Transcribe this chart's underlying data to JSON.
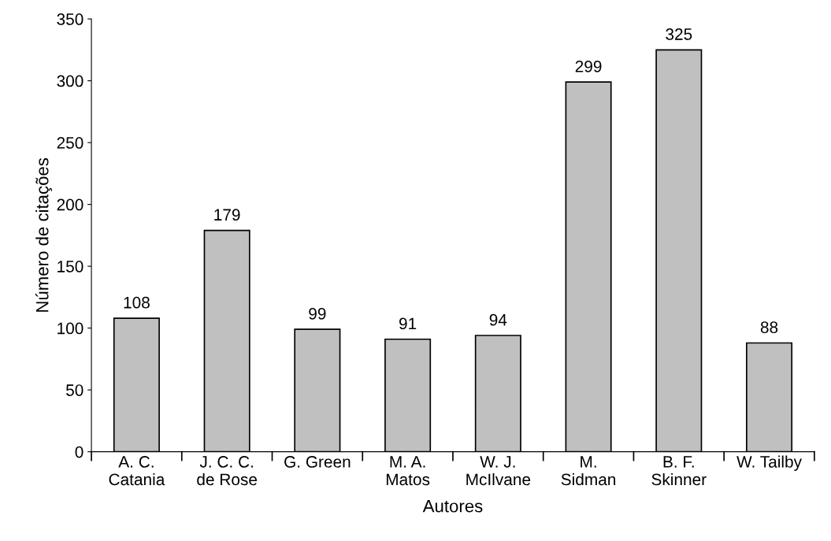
{
  "chart_data": {
    "type": "bar",
    "xlabel": "Autores",
    "ylabel": "Número de citações",
    "categories": [
      "A. C.\nCatania",
      "J. C. C.\nde Rose",
      "G. Green",
      "M. A.\nMatos",
      "W. J.\nMcIlvane",
      "M.\nSidman",
      "B. F.\nSkinner",
      "W. Tailby"
    ],
    "values": [
      108,
      179,
      99,
      91,
      94,
      299,
      325,
      88
    ],
    "color": "#c0c0c0",
    "ylim": [
      0,
      350
    ],
    "yticks": [
      0,
      50,
      100,
      150,
      200,
      250,
      300,
      350
    ],
    "data_labels": true,
    "grid": false,
    "legend": false
  }
}
